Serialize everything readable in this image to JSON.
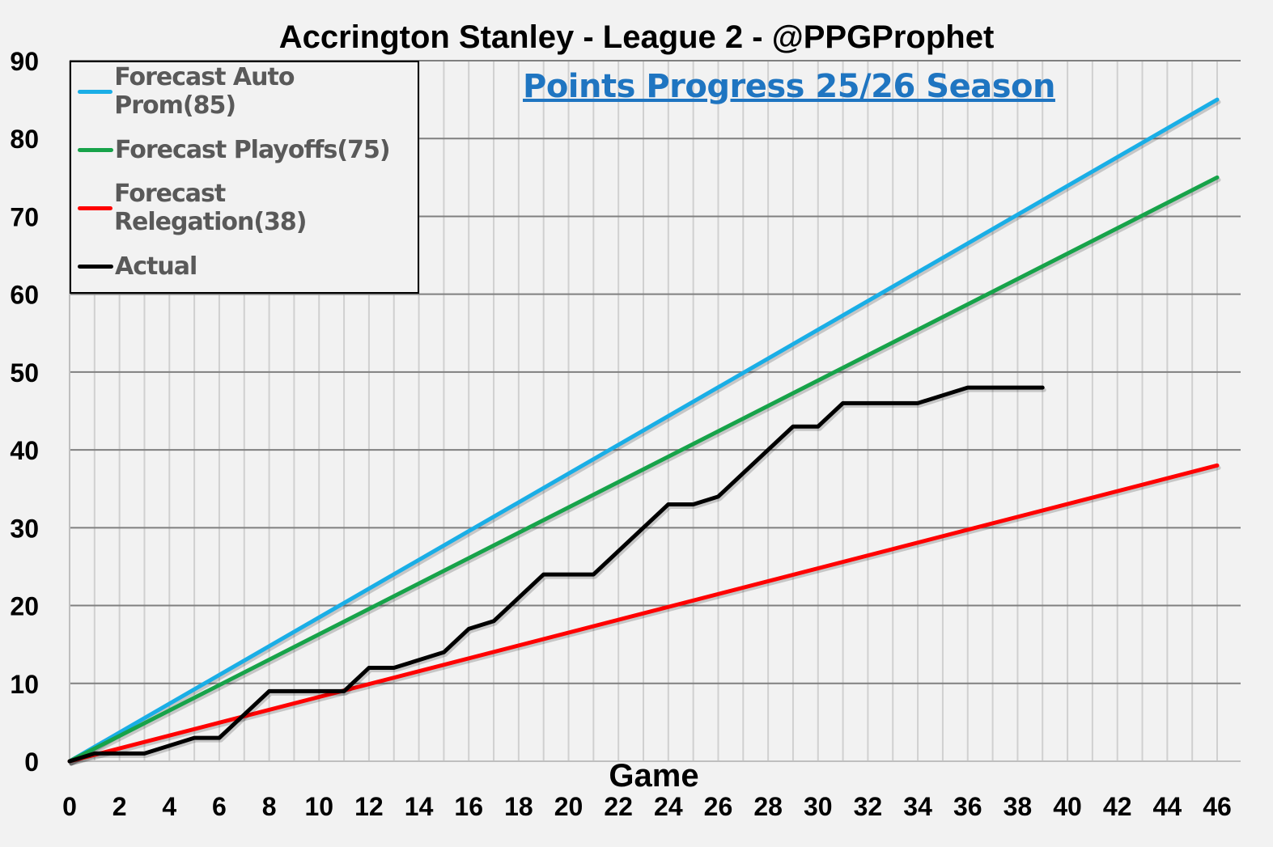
{
  "chart_data": {
    "type": "line",
    "title": "Accrington Stanley - League 2 - @PPGProphet",
    "subtitle": "Points Progress 25/26 Season",
    "xlabel": "Game",
    "ylabel": "",
    "xlim": [
      0,
      46
    ],
    "ylim": [
      0,
      90
    ],
    "x_ticks": [
      0,
      2,
      4,
      6,
      8,
      10,
      12,
      14,
      16,
      18,
      20,
      22,
      24,
      26,
      28,
      30,
      32,
      34,
      36,
      38,
      40,
      42,
      44,
      46
    ],
    "y_ticks": [
      0,
      10,
      20,
      30,
      40,
      50,
      60,
      70,
      80,
      90
    ],
    "grid": true,
    "legend_position": "top-left",
    "series": [
      {
        "name": "Forecast Auto Prom(85)",
        "color": "#1aaee6",
        "x": [
          0,
          46
        ],
        "y": [
          0,
          85
        ]
      },
      {
        "name": "Forecast Playoffs(75)",
        "color": "#17a34a",
        "x": [
          0,
          46
        ],
        "y": [
          0,
          75
        ]
      },
      {
        "name": "Forecast Relegation(38)",
        "color": "#ff0000",
        "x": [
          0,
          46
        ],
        "y": [
          0,
          38
        ]
      },
      {
        "name": "Actual",
        "color": "#000000",
        "x": [
          0,
          1,
          2,
          3,
          4,
          5,
          6,
          7,
          8,
          9,
          10,
          11,
          12,
          13,
          14,
          15,
          16,
          17,
          18,
          19,
          20,
          21,
          22,
          23,
          24,
          25,
          26,
          27,
          28,
          29,
          30,
          31,
          32,
          33,
          34,
          35,
          36,
          37,
          38,
          39
        ],
        "y": [
          0,
          1,
          1,
          1,
          2,
          3,
          3,
          6,
          9,
          9,
          9,
          9,
          12,
          12,
          13,
          14,
          17,
          18,
          21,
          24,
          24,
          24,
          27,
          30,
          33,
          33,
          34,
          37,
          40,
          43,
          43,
          46,
          46,
          46,
          46,
          47,
          48,
          48,
          48,
          48
        ]
      }
    ]
  }
}
